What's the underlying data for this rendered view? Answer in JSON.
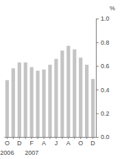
{
  "chart_data": {
    "type": "bar",
    "categories": [
      "O",
      null,
      "D",
      null,
      "F",
      null,
      "A",
      null,
      "J",
      null,
      "A",
      null,
      "O",
      null,
      "D"
    ],
    "values": [
      0.48,
      0.58,
      0.63,
      0.63,
      0.59,
      0.56,
      0.57,
      0.61,
      0.66,
      0.73,
      0.77,
      0.74,
      0.67,
      0.61,
      0.49
    ],
    "color": "#c4c4c4",
    "y_label": "%",
    "ylim": [
      0,
      1
    ],
    "yticks": [
      {
        "value": 0,
        "label": "0.0"
      },
      0.2,
      0.4,
      0.6,
      0.8,
      {
        "value": 1,
        "label": "1.0"
      }
    ],
    "grid": false,
    "annotations": [
      {
        "text": "2006",
        "x": 0
      },
      {
        "text": "2007",
        "x": 4
      }
    ]
  }
}
